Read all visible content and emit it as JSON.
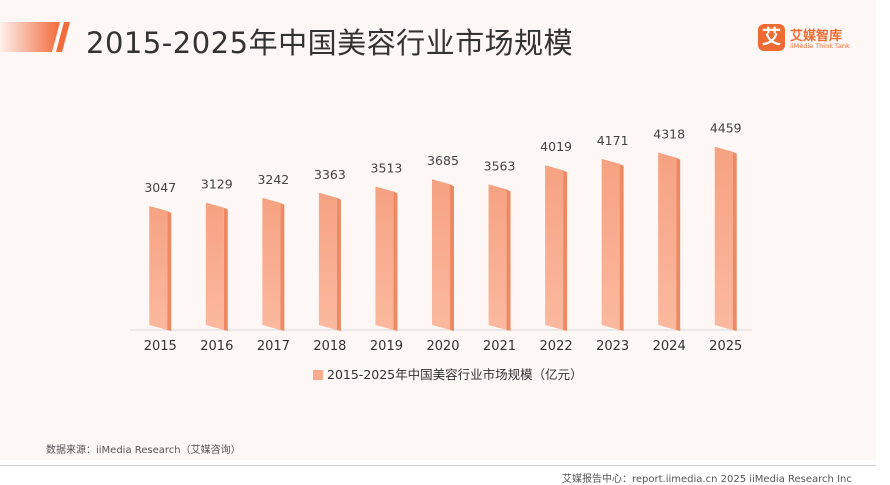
{
  "header": {
    "title": "2015-2025年中国美容行业市场规模"
  },
  "brand": {
    "mark": "艾",
    "name": "艾媒智库",
    "tagline": "iiMedia Think Tank",
    "color": "#ee6c34"
  },
  "colors": {
    "bar_front": "#f8ab8d",
    "bar_side": "#ee8a63",
    "title_accent": "#f26b3a"
  },
  "chart_data": {
    "type": "bar",
    "categories": [
      "2015",
      "2016",
      "2017",
      "2018",
      "2019",
      "2020",
      "2021",
      "2022",
      "2023",
      "2024",
      "2025"
    ],
    "series": [
      {
        "name": "2015-2025年中国美容行业市场规模（亿元）",
        "values": [
          3047,
          3129,
          3242,
          3363,
          3513,
          3685,
          3563,
          4019,
          4171,
          4318,
          4459
        ]
      }
    ],
    "title": "",
    "xlabel": "",
    "ylabel": "",
    "legend": "bottom",
    "grid": false
  },
  "source": "数据来源：iiMedia Research（艾媒咨询）",
  "footer": "艾媒报告中心：report.iimedia.cn   2025 iiMedia Research Inc"
}
